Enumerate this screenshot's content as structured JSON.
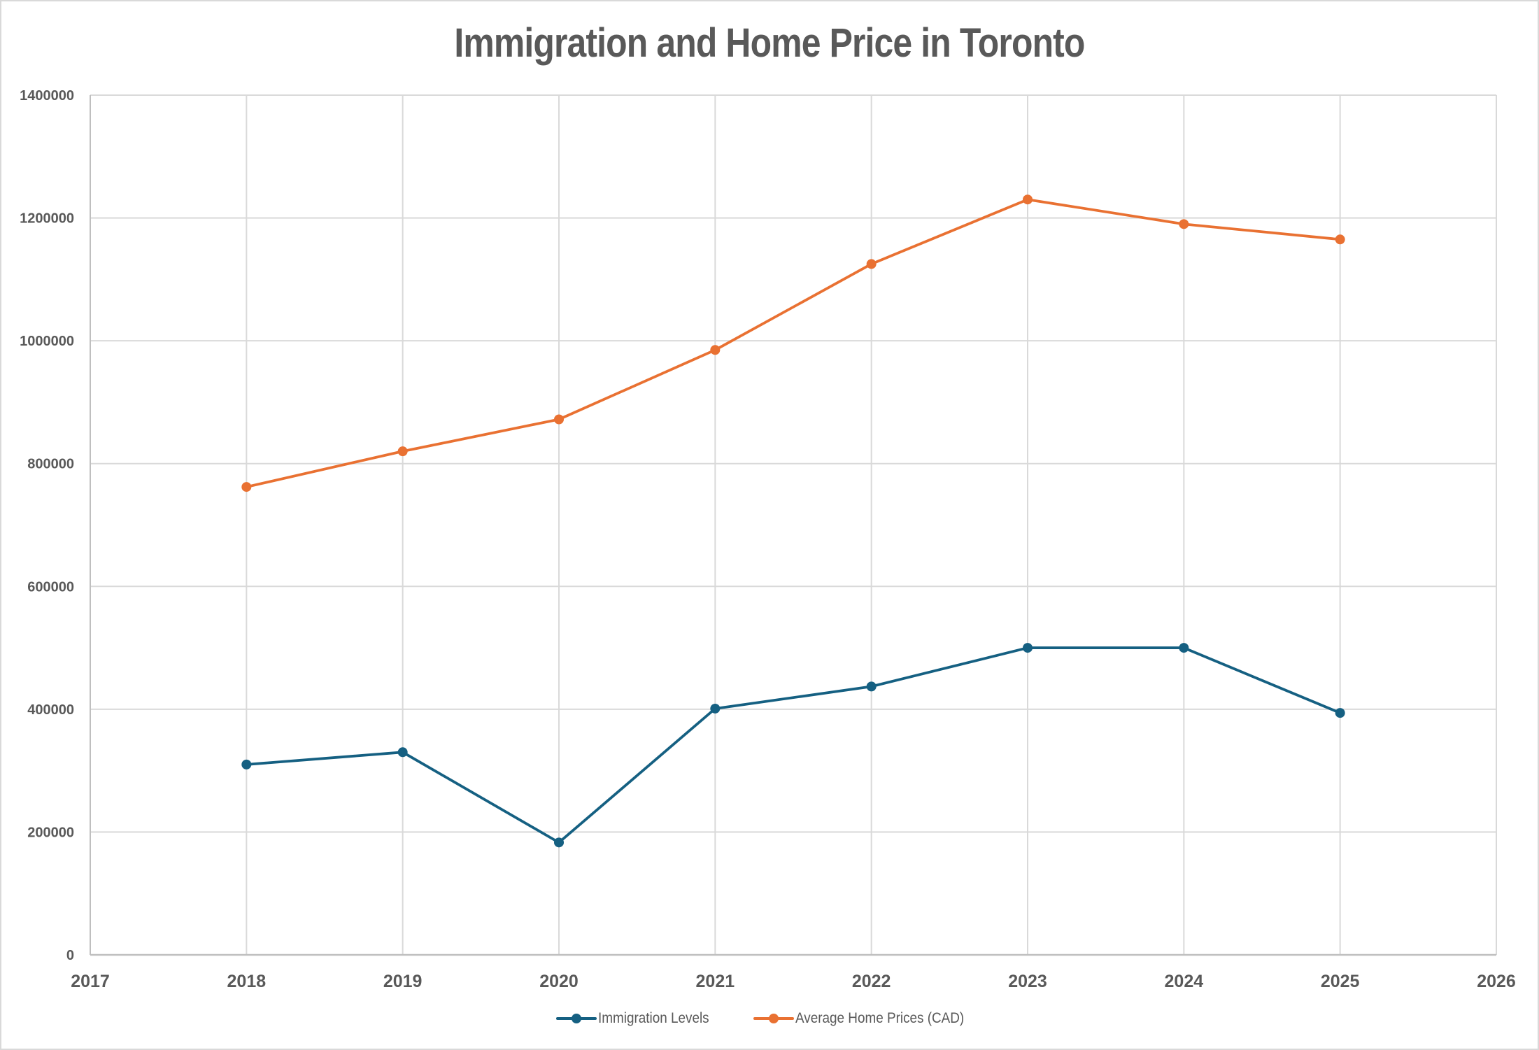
{
  "chart_data": {
    "type": "line",
    "title": "Immigration and Home Price in Toronto",
    "xlabel": "",
    "ylabel": "",
    "x": [
      2018,
      2019,
      2020,
      2021,
      2022,
      2023,
      2024,
      2025
    ],
    "xlim": [
      2017,
      2026
    ],
    "ylim": [
      0,
      1400000
    ],
    "x_ticks": [
      "2017",
      "2018",
      "2019",
      "2020",
      "2021",
      "2022",
      "2023",
      "2024",
      "2025",
      "2026"
    ],
    "y_ticks": [
      "0",
      "200000",
      "400000",
      "600000",
      "800000",
      "1000000",
      "1200000",
      "1400000"
    ],
    "grid": true,
    "legend_position": "bottom",
    "series": [
      {
        "name": "Immigration Levels",
        "color": "#156082",
        "marker": "circle",
        "values": [
          310000,
          330000,
          183000,
          401000,
          437000,
          500000,
          500000,
          394000
        ]
      },
      {
        "name": "Average Home Prices (CAD)",
        "color": "#E97132",
        "marker": "circle",
        "values": [
          762000,
          820000,
          872000,
          985000,
          1125000,
          1230000,
          1190000,
          1165000
        ]
      }
    ]
  }
}
